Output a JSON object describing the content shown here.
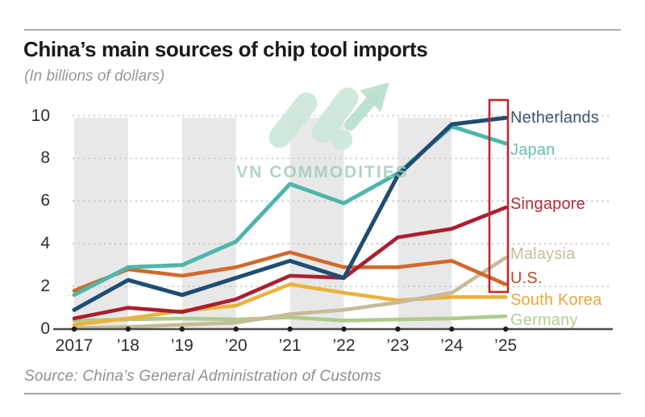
{
  "header": {
    "title": "China’s main sources of chip tool imports",
    "subtitle": "(In billions of dollars)"
  },
  "source": {
    "text": "Source: China’s General Administration of Customs"
  },
  "watermark": {
    "text": "VN COMMODITIES"
  },
  "palette": {
    "band": "#e8e8e8",
    "grid": "#c6c6c6",
    "axis": "#4a4a4a",
    "tick_dot": "#1d1d1d",
    "highlight_box": "#c4262b",
    "watermark_shape": "#cde7da",
    "watermark_arrow": "#b9dfcb",
    "title_text": "#1a1a1a",
    "muted_text": "#8f8f8f"
  },
  "chart_data": {
    "type": "line",
    "title": "China’s main sources of chip tool imports",
    "subtitle": "(In billions of dollars)",
    "unit": "billions of dollars",
    "x_labels": [
      "2017",
      "’18",
      "’19",
      "’20",
      "’21",
      "’22",
      "’23",
      "’24",
      "’25"
    ],
    "y_ticks": [
      0,
      2,
      4,
      6,
      8,
      10
    ],
    "ylim": [
      0,
      10
    ],
    "grid": "dotted horizontal gridlines; alternating gray vertical year bands",
    "legend_position": "labels at right end of lines",
    "highlight": {
      "note": "red box around 2025 values",
      "color": "#c4262b"
    },
    "series": [
      {
        "name": "Netherlands",
        "color": "#1e4d74",
        "label_color": "#3a576f",
        "values": [
          0.9,
          2.3,
          1.6,
          2.4,
          3.2,
          2.4,
          7.2,
          9.6,
          9.9
        ]
      },
      {
        "name": "Japan",
        "color": "#4eb6a9",
        "label_color": "#66c1b3",
        "values": [
          1.6,
          2.9,
          3.0,
          4.1,
          6.8,
          5.9,
          7.3,
          9.5,
          8.7
        ]
      },
      {
        "name": "Singapore",
        "color": "#ab1f2e",
        "label_color": "#b02e3c",
        "values": [
          0.5,
          1.0,
          0.8,
          1.4,
          2.5,
          2.4,
          4.3,
          4.7,
          5.7
        ]
      },
      {
        "name": "U.S.",
        "color": "#d3682c",
        "label_color": "#c34728",
        "values": [
          1.8,
          2.8,
          2.5,
          2.9,
          3.6,
          2.9,
          2.9,
          3.2,
          2.1
        ]
      },
      {
        "name": "Malaysia",
        "color": "#c7bb97",
        "label_color": "#c4bf99",
        "values": [
          0.05,
          0.1,
          0.2,
          0.3,
          0.7,
          0.9,
          1.25,
          1.7,
          3.35
        ]
      },
      {
        "name": "South Korea",
        "color": "#eab23c",
        "label_color": "#e8a83c",
        "values": [
          0.2,
          0.5,
          0.85,
          1.1,
          2.1,
          1.7,
          1.35,
          1.5,
          1.5
        ]
      },
      {
        "name": "Germany",
        "color": "#adcb8a",
        "label_color": "#b3cd90",
        "values": [
          0.4,
          0.45,
          0.5,
          0.45,
          0.55,
          0.4,
          0.45,
          0.5,
          0.6
        ]
      }
    ]
  }
}
